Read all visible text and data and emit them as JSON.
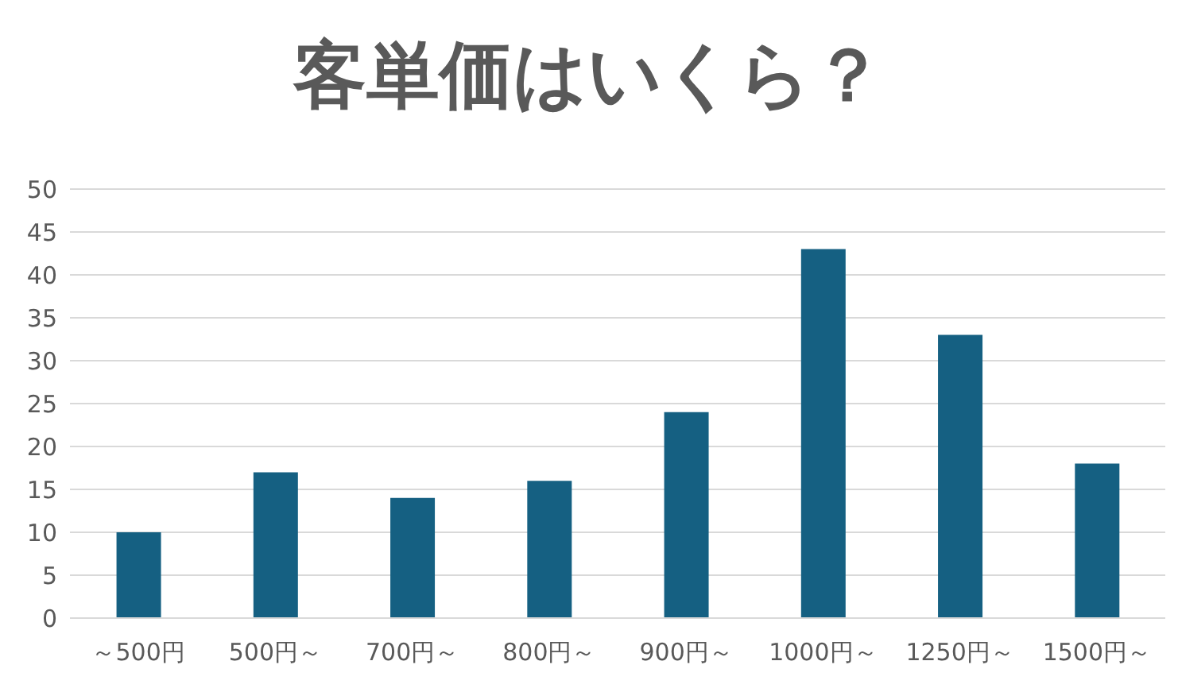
{
  "chart_data": {
    "type": "bar",
    "title": "客単価はいくら？",
    "categories": [
      "～500円",
      "500円～",
      "700円～",
      "800円～",
      "900円～",
      "1000円～",
      "1250円～",
      "1500円～"
    ],
    "values": [
      10,
      17,
      14,
      16,
      24,
      43,
      33,
      18
    ],
    "color": "#156082",
    "ylim": [
      0,
      50
    ],
    "yticks": [
      0,
      5,
      10,
      15,
      20,
      25,
      30,
      35,
      40,
      45,
      50
    ],
    "grid": "y",
    "legend": false
  }
}
